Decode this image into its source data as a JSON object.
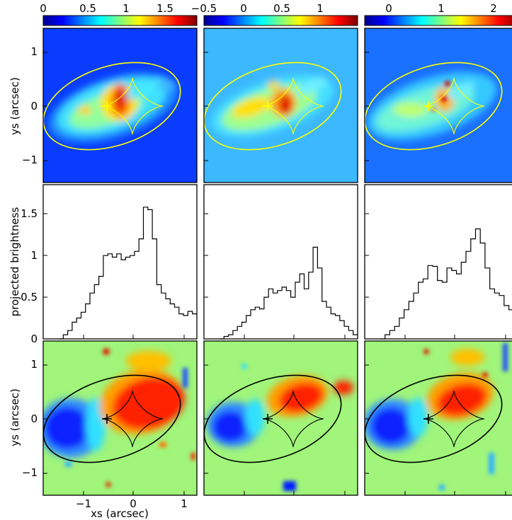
{
  "chart_data": {
    "type": "figure-grid",
    "colorbars": [
      {
        "ticks": [
          "0",
          "0.5",
          "1",
          "1.5"
        ],
        "range": [
          0,
          2.0
        ]
      },
      {
        "ticks": [
          "−0.5",
          "0",
          "0.5",
          "1"
        ],
        "range": [
          -0.5,
          1.5
        ]
      },
      {
        "ticks": [
          "0",
          "1",
          "2"
        ],
        "range": [
          -0.5,
          2.5
        ]
      }
    ],
    "maps": {
      "xlabel": "xs (arcsec)",
      "ylabel": "ys (arcsec)",
      "x_ticks": [
        "−1",
        "0",
        "1"
      ],
      "y_ticks": [
        "1",
        "0",
        "−1"
      ],
      "xlim": [
        -1.6,
        1.2
      ],
      "ylim": [
        -1.45,
        1.45
      ]
    },
    "profiles": {
      "type": "step",
      "ylabel": "projected brightness",
      "y_ticks": [
        "0",
        "0.5",
        "1",
        "1.5"
      ],
      "ylim": [
        0,
        1.85
      ],
      "series": [
        {
          "values": [
            0.0,
            0.05,
            0.1,
            0.2,
            0.25,
            0.32,
            0.42,
            0.55,
            0.65,
            0.75,
            1.0,
            1.02,
            0.98,
            1.02,
            0.95,
            0.98,
            1.0,
            1.05,
            1.2,
            1.58,
            1.55,
            1.2,
            0.65,
            0.55,
            0.48,
            0.42,
            0.38,
            0.3,
            0.28,
            0.33,
            0.3
          ]
        },
        {
          "values": [
            0.0,
            0.03,
            0.05,
            0.1,
            0.15,
            0.2,
            0.28,
            0.35,
            0.38,
            0.36,
            0.5,
            0.6,
            0.55,
            0.58,
            0.62,
            0.58,
            0.5,
            0.68,
            0.78,
            0.6,
            0.8,
            1.1,
            0.85,
            0.45,
            0.38,
            0.3,
            0.28,
            0.22,
            0.15,
            0.1,
            0.05
          ]
        },
        {
          "values": [
            0.0,
            0.05,
            0.1,
            0.15,
            0.25,
            0.35,
            0.45,
            0.55,
            0.68,
            0.72,
            0.88,
            0.87,
            0.7,
            0.68,
            0.85,
            0.82,
            0.78,
            0.92,
            1.05,
            1.2,
            1.32,
            1.15,
            0.85,
            0.6,
            0.55,
            0.52,
            0.4,
            0.35,
            0.2
          ]
        }
      ]
    }
  }
}
